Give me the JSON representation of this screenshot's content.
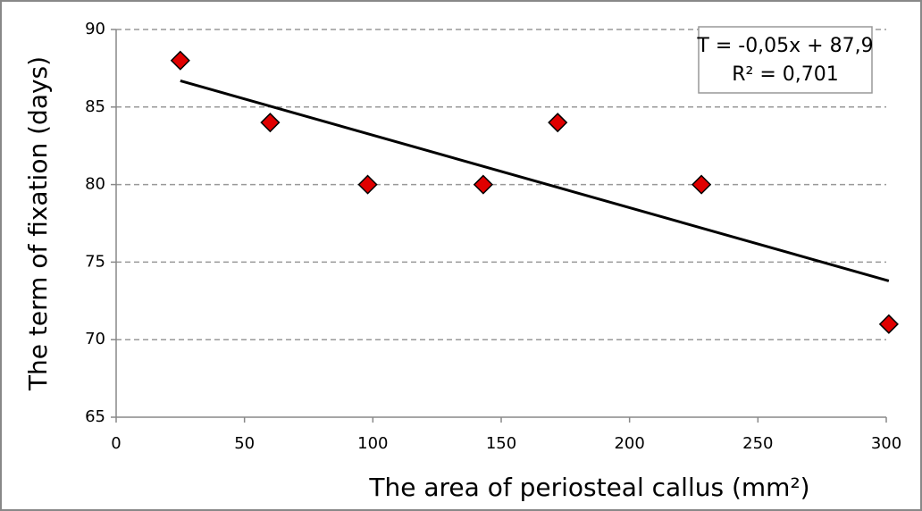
{
  "chart_data": {
    "type": "scatter",
    "xlabel": "The area of periosteal callus (mm²)",
    "ylabel": "The term of fixation (days)",
    "annotations": [
      "T = -0,05x + 87,9",
      "R² = 0,701"
    ],
    "x": [
      25,
      60,
      98,
      143,
      172,
      228,
      301
    ],
    "values": [
      88,
      84,
      80,
      80,
      84,
      80,
      71
    ],
    "color": "#e00000",
    "trendline": true,
    "xlim": [
      0,
      300
    ],
    "xticks": [
      0,
      50,
      100,
      150,
      200,
      250,
      300
    ],
    "ylim": [
      65,
      90
    ],
    "yticks": [
      65,
      70,
      75,
      80,
      85,
      90
    ],
    "grid": true
  }
}
